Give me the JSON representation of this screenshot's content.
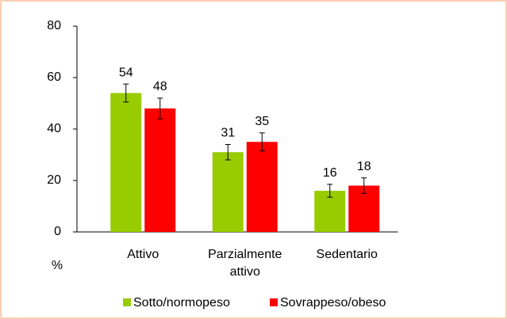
{
  "chart_data": {
    "type": "bar",
    "ylabel": "%",
    "categories": [
      "Attivo",
      "Parzialmente attivo",
      "Sedentario"
    ],
    "series": [
      {
        "name": "Sotto/normopeso",
        "color": "#99cc00",
        "values": [
          54,
          31,
          16
        ],
        "errors": [
          3.5,
          3,
          2.5
        ]
      },
      {
        "name": "Sovrappeso/obeso",
        "color": "#ff0000",
        "values": [
          48,
          35,
          18
        ],
        "errors": [
          4,
          3.5,
          3
        ]
      }
    ],
    "ylim": [
      0,
      80
    ],
    "yticks": [
      0,
      20,
      40,
      60,
      80
    ],
    "grid": false,
    "legend": "bottom"
  }
}
